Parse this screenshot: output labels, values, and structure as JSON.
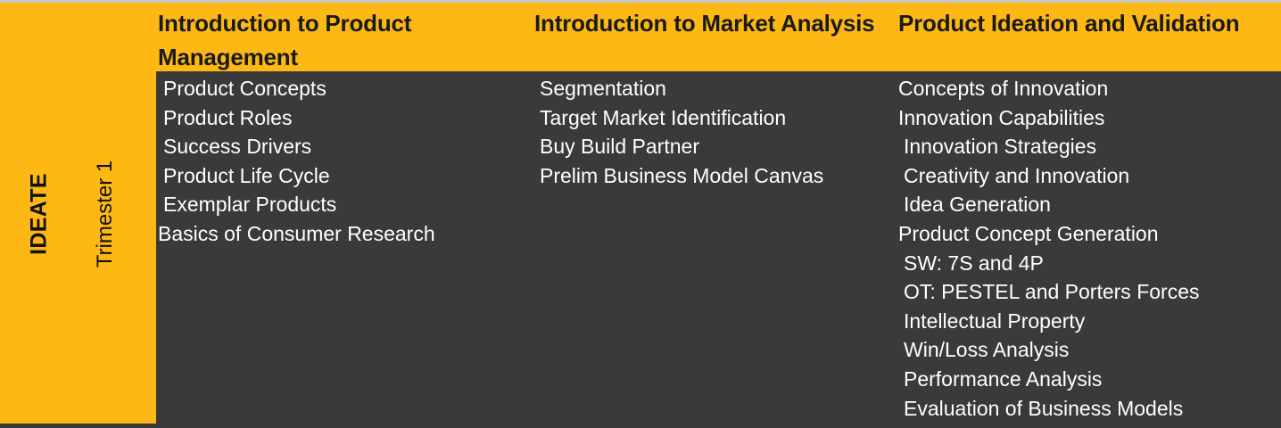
{
  "stage": "IDEATE",
  "trimester": "Trimester 1",
  "columns": [
    {
      "title": "Introduction to Product Management",
      "items": [
        "Product Concepts",
        "Product Roles",
        "Success Drivers",
        "Product Life Cycle",
        "Exemplar Products",
        "Basics of Consumer Research"
      ]
    },
    {
      "title": "Introduction to Market Analysis",
      "items": [
        "Segmentation",
        "Target Market Identification",
        "Buy Build Partner",
        "Prelim Business Model Canvas"
      ]
    },
    {
      "title": "Product Ideation and Validation",
      "items": [
        "Concepts of Innovation",
        "Innovation Capabilities",
        "Innovation Strategies",
        "Creativity and Innovation",
        "Idea Generation",
        "Product Concept Generation",
        "SW: 7S and 4P",
        "OT: PESTEL and Porters Forces",
        "Intellectual Property",
        "Win/Loss Analysis",
        "Performance Analysis",
        "Evaluation of Business Models"
      ]
    }
  ],
  "colors": {
    "accent": "#FDB813",
    "panel": "#3a3a3a",
    "item_text": "#ffffff",
    "header_text": "#1a1a1a"
  }
}
